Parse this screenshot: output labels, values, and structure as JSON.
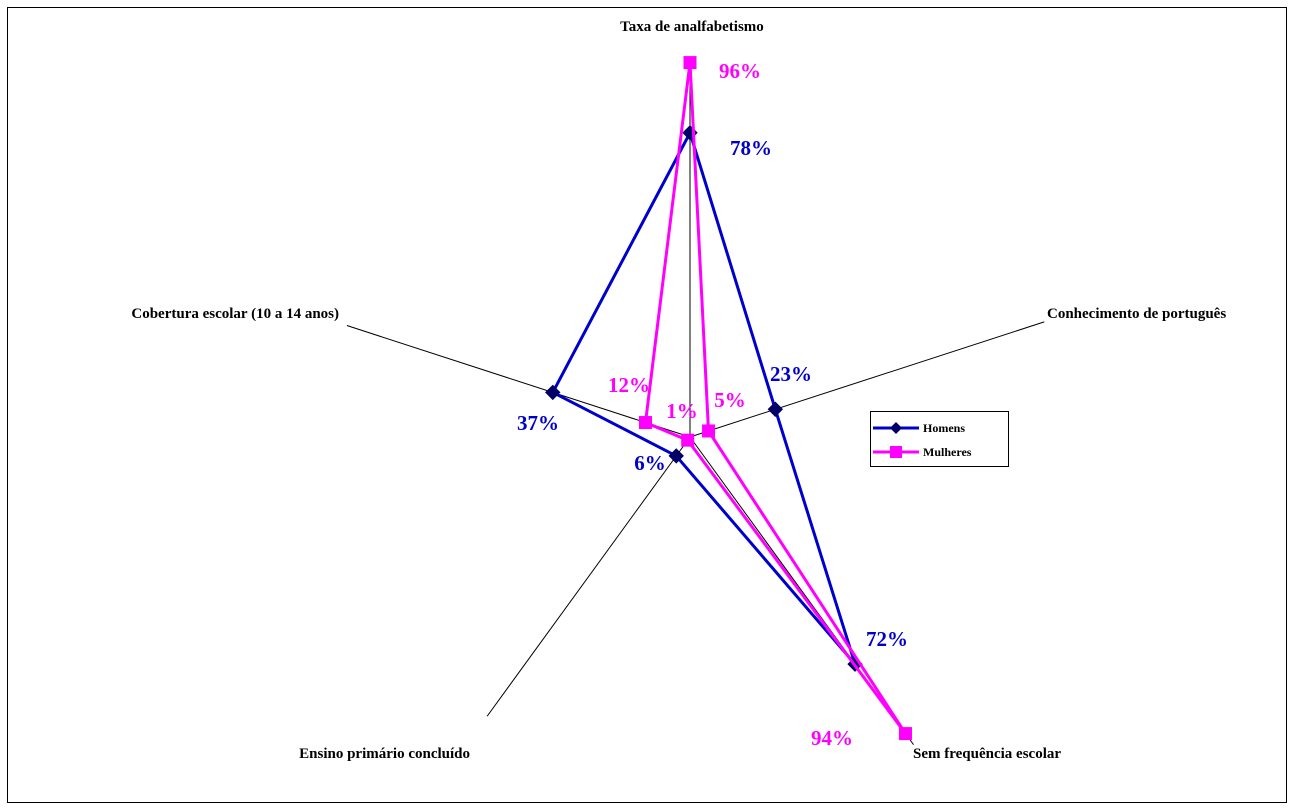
{
  "chart_data": {
    "type": "radar",
    "axes": [
      "Taxa de analfabetismo",
      "Conhecimento de português",
      "Sem frequência escolar",
      "Ensino primário concluído",
      "Cobertura escolar (10 a 14 anos)"
    ],
    "series": [
      {
        "name": "Homens",
        "color": "#0000CC",
        "marker": "diamond",
        "values": [
          78,
          23,
          72,
          6,
          37
        ],
        "labels": [
          "78%",
          "23%",
          "72%",
          "6%",
          "37%"
        ]
      },
      {
        "name": "Mulheres",
        "color": "#FF00FF",
        "marker": "square",
        "values": [
          96,
          5,
          94,
          1,
          12
        ],
        "labels": [
          "96%",
          "5%",
          "94%",
          "1%",
          "12%"
        ]
      }
    ],
    "rmax": 100,
    "legend_position": "right"
  }
}
